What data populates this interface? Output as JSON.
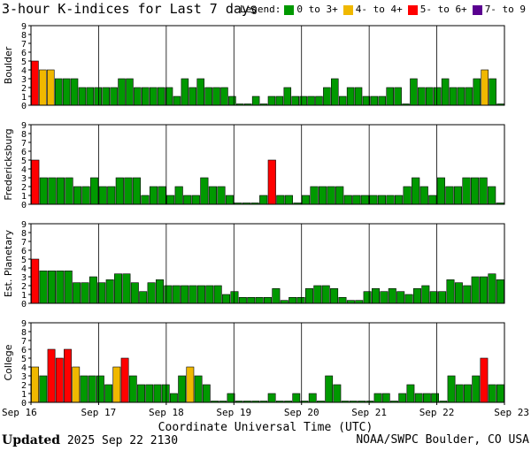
{
  "header": {
    "title": "3-hour K-indices for Last 7 days",
    "legend_title": "Legend:",
    "legend": [
      {
        "label": "0 to 3+",
        "color": "#009900"
      },
      {
        "label": "4- to 4+",
        "color": "#f0b800"
      },
      {
        "label": "5- to 6+",
        "color": "#ff0000"
      },
      {
        "label": "7- to 9",
        "color": "#5a0090"
      }
    ]
  },
  "footer": {
    "updated_label": "Updated",
    "updated_value": "2025 Sep 22 2130",
    "credit": "NOAA/SWPC Boulder, CO USA"
  },
  "chart_data": [
    {
      "type": "bar",
      "station": "Boulder",
      "ylabel": "Boulder",
      "ylim": [
        0,
        9
      ],
      "yticks": [
        "0",
        "1",
        "2",
        "3",
        "4",
        "5",
        "6",
        "7",
        "8",
        "9"
      ],
      "xlabel": "Coordinate Universal Time (UTC)",
      "xticks": [
        "Sep 16",
        "Sep 17",
        "Sep 18",
        "Sep 19",
        "Sep 20",
        "Sep 21",
        "Sep 22",
        "Sep 23"
      ],
      "values": [
        5,
        4,
        4,
        3,
        3,
        3,
        2,
        2,
        2,
        2,
        2,
        3,
        3,
        2,
        2,
        2,
        2,
        2,
        1,
        3,
        2,
        3,
        2,
        2,
        2,
        1,
        0,
        0,
        1,
        0,
        1,
        1,
        2,
        1,
        1,
        1,
        1,
        2,
        3,
        1,
        2,
        2,
        1,
        1,
        1,
        2,
        2,
        0,
        3,
        2,
        2,
        2,
        3,
        2,
        2,
        2,
        3,
        4,
        3,
        0
      ]
    },
    {
      "type": "bar",
      "station": "Fredericksburg",
      "ylabel": "Fredericksburg",
      "ylim": [
        0,
        9
      ],
      "yticks": [
        "0",
        "1",
        "2",
        "3",
        "4",
        "5",
        "6",
        "7",
        "8",
        "9"
      ],
      "xlabel": "Coordinate Universal Time (UTC)",
      "xticks": [
        "Sep 16",
        "Sep 17",
        "Sep 18",
        "Sep 19",
        "Sep 20",
        "Sep 21",
        "Sep 22",
        "Sep 23"
      ],
      "values": [
        5,
        3,
        3,
        3,
        3,
        2,
        2,
        3,
        2,
        2,
        3,
        3,
        3,
        1,
        2,
        2,
        1,
        2,
        1,
        1,
        3,
        2,
        2,
        1,
        0,
        0,
        0,
        1,
        5,
        1,
        1,
        0,
        1,
        2,
        2,
        2,
        2,
        1,
        1,
        1,
        1,
        1,
        1,
        1,
        2,
        3,
        2,
        1,
        3,
        2,
        2,
        3,
        3,
        3,
        2,
        0
      ]
    },
    {
      "type": "bar",
      "station": "Est. Planetary",
      "ylabel": "Est. Planetary",
      "ylim": [
        0,
        9
      ],
      "yticks": [
        "0",
        "1",
        "2",
        "3",
        "4",
        "5",
        "6",
        "7",
        "8",
        "9"
      ],
      "xlabel": "Coordinate Universal Time (UTC)",
      "xticks": [
        "Sep 16",
        "Sep 17",
        "Sep 18",
        "Sep 19",
        "Sep 20",
        "Sep 21",
        "Sep 22",
        "Sep 23"
      ],
      "values": [
        5,
        3.67,
        3.67,
        3.67,
        3.67,
        2.33,
        2.33,
        3,
        2.33,
        2.67,
        3.33,
        3.33,
        2.33,
        1.33,
        2.33,
        2.67,
        2,
        2,
        2,
        2,
        2,
        2,
        2,
        1,
        1.33,
        0.67,
        0.67,
        0.67,
        0.67,
        1.67,
        0.33,
        0.67,
        0.67,
        1.67,
        2,
        2,
        1.67,
        0.67,
        0.33,
        0.33,
        1.33,
        1.67,
        1.33,
        1.67,
        1.33,
        1,
        1.67,
        2,
        1.33,
        1.33,
        2.67,
        2.33,
        2,
        3,
        3,
        3.33,
        2.67
      ]
    },
    {
      "type": "bar",
      "station": "College",
      "ylabel": "College",
      "ylim": [
        0,
        9
      ],
      "yticks": [
        "0",
        "1",
        "2",
        "3",
        "4",
        "5",
        "6",
        "7",
        "8",
        "9"
      ],
      "xlabel": "Coordinate Universal Time (UTC)",
      "xticks": [
        "Sep 16",
        "Sep 17",
        "Sep 18",
        "Sep 19",
        "Sep 20",
        "Sep 21",
        "Sep 22",
        "Sep 23"
      ],
      "values": [
        4,
        3,
        6,
        5,
        6,
        4,
        3,
        3,
        3,
        2,
        4,
        5,
        3,
        2,
        2,
        2,
        2,
        1,
        3,
        4,
        3,
        2,
        0,
        0,
        1,
        0,
        0,
        0,
        0,
        1,
        0,
        0,
        1,
        0,
        1,
        0,
        3,
        2,
        0,
        0,
        0,
        0,
        1,
        1,
        0,
        1,
        2,
        1,
        1,
        1,
        0,
        3,
        2,
        2,
        3,
        5,
        2,
        2
      ]
    }
  ]
}
